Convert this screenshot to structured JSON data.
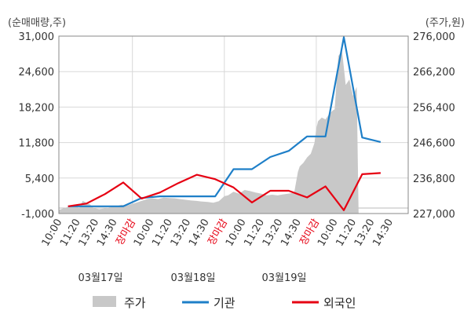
{
  "chart_data": {
    "type": "line",
    "left_axis_unit": "(순매매량,주)",
    "right_axis_unit": "(주가,원)",
    "left_ticks": [
      "31,000",
      "24,600",
      "18,200",
      "11,800",
      "5,400",
      "-1,000"
    ],
    "left_values": [
      31000,
      24600,
      18200,
      11800,
      5400,
      -1000
    ],
    "left_range": [
      -1000,
      31000
    ],
    "right_ticks": [
      "276,000",
      "266,200",
      "256,400",
      "246,600",
      "236,800",
      "227,000"
    ],
    "right_values": [
      276000,
      266200,
      256400,
      246600,
      236800,
      227000
    ],
    "right_range": [
      227000,
      276000
    ],
    "x_labels": [
      "10:00",
      "11:20",
      "13:20",
      "14:30",
      "장마감",
      "10:00",
      "11:20",
      "13:20",
      "14:30",
      "장마감",
      "10:00",
      "11:20",
      "13:20",
      "14:30",
      "장마감",
      "10:00",
      "11:20",
      "13:20",
      "14:30"
    ],
    "close_label": "장마감",
    "dates": [
      "03월17일",
      "03월18일",
      "03월19일"
    ],
    "legend": [
      "주가",
      "기관",
      "외국인"
    ],
    "colors": {
      "price": "#c8c8c8",
      "institution": "#1e7fc8",
      "foreign": "#e60012",
      "close_label": "#e60012",
      "frame": "#888888",
      "grid": "#d8d8d8"
    },
    "series": [
      {
        "name": "기관",
        "x": [
          0.5,
          1.5,
          2.5,
          3.5,
          4.5,
          5.5,
          6.5,
          7.5,
          8.5,
          9.5,
          10.5,
          11.5,
          12.5,
          13.5,
          14.5,
          15.5,
          16.5,
          17.5
        ],
        "values": [
          300,
          300,
          300,
          300,
          1800,
          2100,
          2100,
          2100,
          2100,
          7000,
          7000,
          9200,
          10300,
          12900,
          12900,
          30800,
          12700,
          11900
        ]
      },
      {
        "name": "외국인",
        "x": [
          0.5,
          1.5,
          2.5,
          3.5,
          4.5,
          5.5,
          6.5,
          7.5,
          8.5,
          9.5,
          10.5,
          11.5,
          12.5,
          13.5,
          14.5,
          15.5,
          16.5,
          17.5
        ],
        "values": [
          300,
          800,
          2500,
          4600,
          1700,
          2800,
          4500,
          6000,
          5200,
          3700,
          1000,
          3100,
          3100,
          1900,
          3900,
          -400,
          6100,
          6300
        ]
      },
      {
        "name": "주가",
        "x": [
          0.0,
          0.3,
          0.6,
          0.9,
          1.1,
          1.3,
          1.5,
          1.7,
          1.9,
          2.2,
          2.5,
          2.8,
          3.1,
          3.4,
          3.7,
          4.0,
          4.2,
          4.5,
          4.8,
          5.1,
          5.4,
          5.7,
          6.0,
          6.3,
          6.6,
          6.9,
          7.2,
          7.5,
          7.8,
          8.1,
          8.4,
          8.7,
          9.0,
          9.2,
          9.5,
          9.8,
          10.1,
          10.4,
          10.7,
          11.0,
          11.3,
          11.6,
          11.9,
          12.2,
          12.5,
          12.8,
          13.0,
          13.1,
          13.3,
          13.5,
          13.7,
          13.9,
          14.0,
          14.1,
          14.3,
          14.5,
          14.7,
          14.9,
          15.0,
          15.2,
          15.4,
          15.6,
          15.8,
          16.0,
          16.2,
          16.3
        ],
        "values": [
          228000,
          228500,
          229000,
          229500,
          228500,
          230500,
          230000,
          229500,
          228500,
          228200,
          228400,
          228800,
          229000,
          229400,
          229200,
          229700,
          230000,
          230500,
          231000,
          231200,
          231000,
          231400,
          231300,
          231200,
          231000,
          230800,
          230600,
          230500,
          230300,
          230200,
          230000,
          230400,
          231800,
          232000,
          233000,
          232500,
          233500,
          233200,
          232800,
          232500,
          232000,
          232200,
          232000,
          232300,
          232500,
          232800,
          238500,
          240000,
          241000,
          242500,
          243500,
          246500,
          250500,
          252500,
          253500,
          253000,
          254500,
          255500,
          255800,
          270500,
          272000,
          262500,
          264000,
          259500,
          262000,
          227000
        ]
      }
    ]
  }
}
